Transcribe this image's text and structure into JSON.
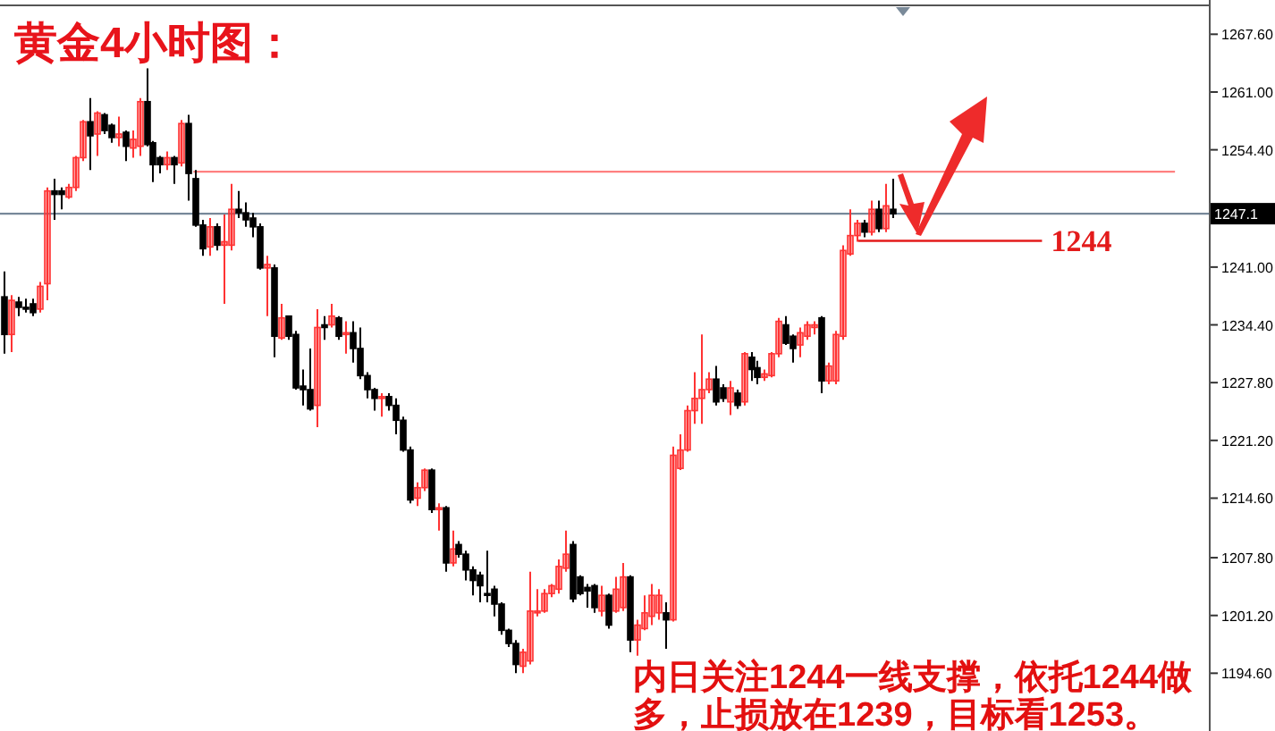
{
  "chart_data": {
    "type": "candlestick",
    "title": "黄金4小时图：",
    "annotations": [
      "内日关注1244一线支撑，依托1244做多，止损放在1239，目标看1253。"
    ],
    "categories": [
      null,
      null,
      null,
      null,
      null,
      null,
      null,
      null,
      null,
      null,
      null,
      null,
      null,
      null,
      null,
      null,
      null,
      null,
      null,
      null,
      null,
      null,
      null,
      null,
      null,
      null,
      null,
      null,
      null,
      null,
      null,
      null,
      null,
      null,
      null,
      null,
      null,
      null,
      null,
      null,
      null,
      null,
      null,
      null,
      null,
      null,
      null,
      null,
      null,
      null,
      null,
      null,
      null,
      null,
      null,
      null,
      null,
      null,
      null,
      null,
      null,
      null,
      null,
      null,
      null,
      null,
      null,
      null,
      null,
      null,
      null,
      null,
      null,
      null,
      null,
      null,
      null,
      null,
      null,
      null,
      null,
      null,
      null,
      null,
      null,
      null,
      null,
      null,
      null,
      null,
      null,
      null,
      null,
      null,
      null,
      null,
      null,
      null,
      null,
      null,
      null,
      null,
      null,
      null,
      null,
      null,
      null,
      null,
      null,
      null,
      null,
      null,
      null,
      null,
      null,
      null,
      null,
      null,
      null,
      null,
      null,
      null,
      null,
      null,
      null,
      null,
      null,
      null,
      null,
      null,
      null,
      null,
      null,
      null,
      null,
      null,
      null,
      null,
      null,
      null,
      null,
      null,
      null,
      null,
      null,
      null,
      null,
      null,
      null,
      null,
      null,
      null,
      null,
      null,
      null,
      null,
      null,
      null,
      null,
      null,
      null,
      null,
      null,
      null,
      null,
      null,
      null,
      null,
      null,
      null
    ],
    "ohlc": [
      [
        1237.6,
        1240.5,
        1231.1,
        1233.3
      ],
      [
        1233.3,
        1237.8,
        1231.3,
        1237.2
      ],
      [
        1237.0,
        1237.6,
        1235.4,
        1236.4
      ],
      [
        1236.4,
        1237.4,
        1235.8,
        1236.3
      ],
      [
        1236.8,
        1237.4,
        1235.4,
        1235.8
      ],
      [
        1236.2,
        1239.3,
        1235.8,
        1238.8
      ],
      [
        1239.1,
        1250.1,
        1237.2,
        1249.7
      ],
      [
        1249.7,
        1251.1,
        1246.4,
        1249.3
      ],
      [
        1249.7,
        1250.1,
        1247.6,
        1249.3
      ],
      [
        1249.0,
        1250.5,
        1248.8,
        1250.1
      ],
      [
        1250.1,
        1253.7,
        1249.7,
        1253.5
      ],
      [
        1253.5,
        1257.8,
        1253.1,
        1257.6
      ],
      [
        1257.6,
        1260.3,
        1252.1,
        1256.0
      ],
      [
        1256.2,
        1258.8,
        1253.7,
        1258.6
      ],
      [
        1258.4,
        1258.6,
        1256.2,
        1256.6
      ],
      [
        1257.2,
        1257.4,
        1255.2,
        1255.8
      ],
      [
        1255.8,
        1258.2,
        1254.8,
        1256.2
      ],
      [
        1256.4,
        1256.6,
        1253.1,
        1254.8
      ],
      [
        1254.6,
        1256.6,
        1253.5,
        1255.6
      ],
      [
        1254.8,
        1260.3,
        1253.7,
        1259.9
      ],
      [
        1259.9,
        1263.7,
        1254.8,
        1255.0
      ],
      [
        1255.2,
        1255.4,
        1250.7,
        1252.7
      ],
      [
        1253.5,
        1253.7,
        1251.7,
        1252.7
      ],
      [
        1252.7,
        1254.2,
        1252.1,
        1253.5
      ],
      [
        1253.5,
        1253.7,
        1250.5,
        1252.7
      ],
      [
        1252.9,
        1257.8,
        1252.5,
        1257.4
      ],
      [
        1257.4,
        1258.4,
        1248.6,
        1251.7
      ],
      [
        1251.1,
        1252.1,
        1245.6,
        1245.8
      ],
      [
        1245.8,
        1246.4,
        1242.3,
        1243.1
      ],
      [
        1243.3,
        1246.6,
        1242.3,
        1245.6
      ],
      [
        1245.6,
        1246.0,
        1242.9,
        1243.5
      ],
      [
        1243.5,
        1247.0,
        1236.8,
        1243.9
      ],
      [
        1243.5,
        1250.5,
        1242.9,
        1247.6
      ],
      [
        1247.6,
        1249.7,
        1246.6,
        1247.2
      ],
      [
        1247.2,
        1248.4,
        1245.6,
        1246.4
      ],
      [
        1246.6,
        1247.2,
        1244.4,
        1245.6
      ],
      [
        1245.6,
        1246.0,
        1240.7,
        1240.9
      ],
      [
        1240.9,
        1242.3,
        1235.4,
        1241.3
      ],
      [
        1240.9,
        1241.3,
        1230.7,
        1233.1
      ],
      [
        1232.9,
        1236.8,
        1232.7,
        1235.2
      ],
      [
        1235.4,
        1235.4,
        1232.7,
        1233.1
      ],
      [
        1233.3,
        1233.7,
        1227.0,
        1227.2
      ],
      [
        1227.4,
        1229.3,
        1225.2,
        1227.0
      ],
      [
        1227.0,
        1231.7,
        1224.6,
        1224.8
      ],
      [
        1225.2,
        1236.2,
        1222.7,
        1234.1
      ],
      [
        1234.4,
        1235.4,
        1232.7,
        1234.1
      ],
      [
        1234.4,
        1236.8,
        1234.1,
        1235.4
      ],
      [
        1235.2,
        1235.4,
        1232.7,
        1233.1
      ],
      [
        1233.3,
        1234.8,
        1231.1,
        1233.5
      ],
      [
        1233.5,
        1234.8,
        1230.1,
        1231.7
      ],
      [
        1231.7,
        1234.1,
        1228.2,
        1228.6
      ],
      [
        1228.6,
        1229.0,
        1226.0,
        1227.0
      ],
      [
        1227.0,
        1227.2,
        1224.6,
        1226.0
      ],
      [
        1226.0,
        1226.6,
        1223.9,
        1226.2
      ],
      [
        1226.2,
        1226.6,
        1224.6,
        1225.2
      ],
      [
        1225.2,
        1226.0,
        1221.9,
        1223.5
      ],
      [
        1223.5,
        1223.9,
        1219.9,
        1220.1
      ],
      [
        1220.1,
        1220.5,
        1214.0,
        1214.4
      ],
      [
        1214.6,
        1216.4,
        1213.7,
        1215.8
      ],
      [
        1215.8,
        1218.0,
        1215.4,
        1217.8
      ],
      [
        1217.8,
        1218.0,
        1212.9,
        1213.3
      ],
      [
        1213.3,
        1214.0,
        1210.9,
        1213.5
      ],
      [
        1213.5,
        1213.7,
        1206.2,
        1207.2
      ],
      [
        1207.2,
        1210.9,
        1206.8,
        1208.8
      ],
      [
        1209.3,
        1209.7,
        1207.8,
        1208.2
      ],
      [
        1208.2,
        1208.6,
        1205.2,
        1206.4
      ],
      [
        1206.4,
        1206.8,
        1203.5,
        1205.2
      ],
      [
        1205.8,
        1206.2,
        1202.7,
        1204.6
      ],
      [
        1203.7,
        1208.6,
        1202.7,
        1203.5
      ],
      [
        1204.2,
        1204.6,
        1201.1,
        1202.5
      ],
      [
        1202.5,
        1202.7,
        1199.0,
        1199.5
      ],
      [
        1199.5,
        1199.7,
        1197.6,
        1198.0
      ],
      [
        1198.0,
        1198.4,
        1194.6,
        1195.6
      ],
      [
        1195.4,
        1197.4,
        1194.6,
        1197.0
      ],
      [
        1196.0,
        1206.2,
        1195.6,
        1201.7
      ],
      [
        1201.5,
        1204.2,
        1201.1,
        1201.7
      ],
      [
        1201.7,
        1204.2,
        1201.5,
        1203.7
      ],
      [
        1203.7,
        1204.8,
        1203.3,
        1204.6
      ],
      [
        1204.2,
        1207.6,
        1203.7,
        1206.8
      ],
      [
        1206.6,
        1210.9,
        1206.2,
        1208.2
      ],
      [
        1209.3,
        1209.7,
        1202.7,
        1203.1
      ],
      [
        1205.6,
        1205.8,
        1203.5,
        1203.7
      ],
      [
        1204.4,
        1204.8,
        1202.1,
        1204.0
      ],
      [
        1204.6,
        1204.8,
        1201.5,
        1202.1
      ],
      [
        1201.7,
        1204.6,
        1201.1,
        1203.5
      ],
      [
        1203.5,
        1203.7,
        1199.7,
        1200.1
      ],
      [
        1201.7,
        1205.6,
        1201.5,
        1204.2
      ],
      [
        1202.1,
        1207.2,
        1201.7,
        1205.6
      ],
      [
        1205.6,
        1205.8,
        1197.0,
        1198.4
      ],
      [
        1198.4,
        1200.7,
        1196.6,
        1200.1
      ],
      [
        1199.7,
        1203.5,
        1199.5,
        1201.5
      ],
      [
        1201.1,
        1204.8,
        1200.1,
        1203.5
      ],
      [
        1201.5,
        1204.2,
        1200.7,
        1203.5
      ],
      [
        1201.5,
        1202.7,
        1197.4,
        1200.7
      ],
      [
        1200.7,
        1220.5,
        1200.5,
        1219.5
      ],
      [
        1218.0,
        1221.9,
        1217.8,
        1220.1
      ],
      [
        1220.1,
        1225.2,
        1219.9,
        1224.6
      ],
      [
        1224.6,
        1229.0,
        1223.1,
        1226.0
      ],
      [
        1226.0,
        1233.3,
        1223.1,
        1227.0
      ],
      [
        1227.0,
        1229.0,
        1226.6,
        1228.2
      ],
      [
        1228.2,
        1229.7,
        1225.2,
        1225.6
      ],
      [
        1227.2,
        1227.6,
        1225.6,
        1226.0
      ],
      [
        1225.6,
        1228.0,
        1224.1,
        1227.2
      ],
      [
        1226.6,
        1227.0,
        1224.8,
        1225.2
      ],
      [
        1225.6,
        1231.3,
        1225.2,
        1231.1
      ],
      [
        1230.7,
        1231.3,
        1228.0,
        1229.3
      ],
      [
        1229.5,
        1230.3,
        1227.6,
        1228.4
      ],
      [
        1228.4,
        1229.3,
        1228.0,
        1228.8
      ],
      [
        1228.6,
        1231.3,
        1228.4,
        1231.1
      ],
      [
        1231.1,
        1235.2,
        1230.7,
        1234.8
      ],
      [
        1234.4,
        1235.4,
        1232.1,
        1232.3
      ],
      [
        1233.1,
        1233.3,
        1230.1,
        1231.7
      ],
      [
        1232.1,
        1234.1,
        1230.7,
        1233.5
      ],
      [
        1233.1,
        1234.8,
        1232.7,
        1234.4
      ],
      [
        1234.1,
        1234.8,
        1233.3,
        1234.4
      ],
      [
        1235.2,
        1235.4,
        1226.6,
        1228.0
      ],
      [
        1228.0,
        1230.1,
        1227.6,
        1229.7
      ],
      [
        1228.0,
        1233.7,
        1227.6,
        1233.3
      ],
      [
        1233.1,
        1243.5,
        1232.7,
        1242.9
      ],
      [
        1242.5,
        1247.6,
        1242.3,
        1244.6
      ],
      [
        1244.6,
        1246.4,
        1243.9,
        1246.0
      ],
      [
        1246.0,
        1246.4,
        1244.4,
        1245.0
      ],
      [
        1245.0,
        1248.6,
        1244.6,
        1247.6
      ],
      [
        1247.6,
        1248.6,
        1245.0,
        1245.4
      ],
      [
        1245.4,
        1250.5,
        1245.0,
        1248.0
      ],
      [
        1247.6,
        1251.1,
        1246.6,
        1247.1
      ],
      null,
      null,
      null,
      null,
      null,
      null,
      null,
      null,
      null,
      null,
      null,
      null,
      null,
      null,
      null,
      null,
      null,
      null,
      null,
      null,
      null,
      null,
      null,
      null,
      null,
      null,
      null,
      null,
      null,
      null,
      null,
      null,
      null,
      null,
      null,
      null,
      null,
      null,
      null,
      null,
      null,
      null,
      null,
      null
    ],
    "colors": [
      "#000000",
      "#ff3333",
      "#000000",
      "#000000",
      "#000000",
      "#ff3333",
      "#ff3333",
      "#000000",
      "#000000",
      "#ff3333",
      "#ff3333",
      "#ff3333",
      "#000000",
      "#ff3333",
      "#000000",
      "#000000",
      "#ff3333",
      "#000000",
      "#ff3333",
      "#ff3333",
      "#000000",
      "#000000",
      "#000000",
      "#ff3333",
      "#000000",
      "#ff3333",
      "#000000",
      "#000000",
      "#000000",
      "#ff3333",
      "#000000",
      "#ff3333",
      "#ff3333",
      "#000000",
      "#000000",
      "#000000",
      "#000000",
      "#ff3333",
      "#000000",
      "#ff3333",
      "#000000",
      "#000000",
      "#000000",
      "#000000",
      "#ff3333",
      "#000000",
      "#ff3333",
      "#000000",
      "#ff3333",
      "#000000",
      "#000000",
      "#000000",
      "#000000",
      "#ff3333",
      "#000000",
      "#000000",
      "#000000",
      "#000000",
      "#ff3333",
      "#ff3333",
      "#000000",
      "#ff3333",
      "#000000",
      "#ff3333",
      "#000000",
      "#000000",
      "#000000",
      "#000000",
      "#000000",
      "#000000",
      "#000000",
      "#000000",
      "#000000",
      "#ff3333",
      "#ff3333",
      "#ff3333",
      "#ff3333",
      "#ff3333",
      "#ff3333",
      "#ff3333",
      "#000000",
      "#000000",
      "#000000",
      "#000000",
      "#ff3333",
      "#000000",
      "#ff3333",
      "#ff3333",
      "#000000",
      "#ff3333",
      "#ff3333",
      "#ff3333",
      "#ff3333",
      "#000000",
      "#ff3333",
      "#ff3333",
      "#ff3333",
      "#ff3333",
      "#ff3333",
      "#ff3333",
      "#000000",
      "#000000",
      "#ff3333",
      "#000000",
      "#ff3333",
      "#000000",
      "#000000",
      "#ff3333",
      "#ff3333",
      "#ff3333",
      "#000000",
      "#000000",
      "#ff3333",
      "#ff3333",
      "#ff3333",
      "#000000",
      "#ff3333",
      "#ff3333",
      "#ff3333",
      "#ff3333",
      "#ff3333",
      "#000000",
      "#ff3333",
      "#000000",
      "#ff3333",
      "#000000",
      null,
      null,
      null,
      null,
      null,
      null,
      null,
      null,
      null,
      null,
      null,
      null,
      null,
      null,
      null,
      null,
      null,
      null,
      null,
      null,
      null,
      null,
      null,
      null,
      null,
      null,
      null,
      null,
      null,
      null,
      null,
      null,
      null,
      null,
      null,
      null,
      null,
      null,
      null,
      null,
      null,
      null,
      null,
      null
    ],
    "ylim": [
      1188.0,
      1270.9
    ],
    "yticks": [
      {
        "value": 1267.6,
        "label": "1267.60"
      },
      {
        "value": 1261.0,
        "label": "1261.00"
      },
      {
        "value": 1254.4,
        "label": "1254.40"
      },
      {
        "value": 1241.0,
        "label": "1241.00"
      },
      {
        "value": 1234.4,
        "label": "1234.40"
      },
      {
        "value": 1227.8,
        "label": "1227.80"
      },
      {
        "value": 1221.2,
        "label": "1221.20"
      },
      {
        "value": 1214.6,
        "label": "1214.60"
      },
      {
        "value": 1207.8,
        "label": "1207.80"
      },
      {
        "value": 1201.2,
        "label": "1201.20"
      },
      {
        "value": 1194.6,
        "label": "1194.60"
      }
    ],
    "ref_lines": [
      {
        "axis": "y",
        "value": 1247.1,
        "label": "1247.1",
        "color": "#778899"
      },
      {
        "axis": "y",
        "value": 1251.9,
        "color": "#ff8080"
      },
      {
        "axis": "y",
        "value": 1244,
        "label": "1244",
        "color": "#e31b1b"
      }
    ],
    "tick_labels": "y"
  }
}
